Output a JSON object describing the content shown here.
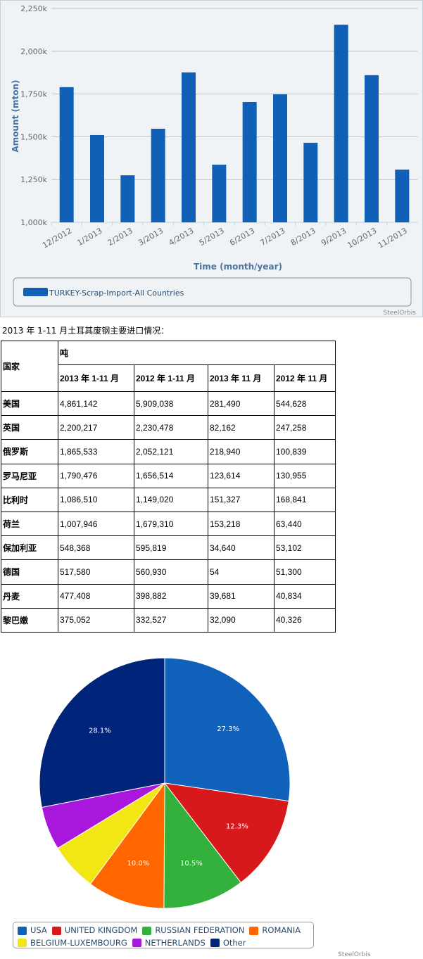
{
  "chart_data": [
    {
      "type": "bar",
      "xlabel": "Time (month/year)",
      "ylabel": "Amount (mton)",
      "ylim": [
        1000,
        2250
      ],
      "yticks": [
        "1,000k",
        "1,250k",
        "1,500k",
        "1,750k",
        "2,000k",
        "2,250k"
      ],
      "categories": [
        "12/2012",
        "1/2013",
        "2/2013",
        "3/2013",
        "4/2013",
        "5/2013",
        "6/2013",
        "7/2013",
        "8/2013",
        "9/2013",
        "10/2013",
        "11/2013"
      ],
      "series": [
        {
          "name": "TURKEY-Scrap-Import-All Countries",
          "values": [
            1790,
            1510,
            1275,
            1547,
            1876,
            1337,
            1703,
            1748,
            1465,
            2155,
            1860,
            1308
          ]
        }
      ],
      "color": "#1060b8",
      "grid": true,
      "legend": "bottom",
      "credit": "SteelOrbis"
    },
    {
      "type": "pie",
      "legend": "bottom",
      "credit": "SteelOrbis",
      "slices": [
        {
          "name": "USA",
          "value": 27.3,
          "label": "27.3%",
          "color": "#1061b9"
        },
        {
          "name": "UNITED KINGDOM",
          "value": 12.3,
          "label": "12.3%",
          "color": "#d7191c"
        },
        {
          "name": "RUSSIAN FEDERATION",
          "value": 10.5,
          "label": "10.5%",
          "color": "#34b03c"
        },
        {
          "name": "ROMANIA",
          "value": 10.0,
          "label": "10.0%",
          "color": "#ff6600"
        },
        {
          "name": "BELGIUM-LUXEMBOURG",
          "value": 6.2,
          "label": "",
          "color": "#f2e615"
        },
        {
          "name": "NETHERLANDS",
          "value": 5.6,
          "label": "",
          "color": "#aa17dc"
        },
        {
          "name": "Other",
          "value": 28.1,
          "label": "28.1%",
          "color": "#00247a"
        }
      ]
    }
  ],
  "caption": "2013 年 1-11 月土耳其废钢主要进口情况：",
  "table": {
    "col0": "国家",
    "unit": "吨",
    "headers": [
      "2013 年 1-11 月",
      "2012 年 1-11 月",
      "2013 年 11 月",
      "2012 年 11 月"
    ],
    "rows": [
      [
        "美国",
        "4,861,142",
        "5,909,038",
        "281,490",
        "544,628"
      ],
      [
        "英国",
        "2,200,217",
        "2,230,478",
        "82,162",
        "247,258"
      ],
      [
        "俄罗斯",
        "1,865,533",
        "2,052,121",
        "218,940",
        "100,839"
      ],
      [
        "罗马尼亚",
        "1,790,476",
        "1,656,514",
        "123,614",
        "130,955"
      ],
      [
        "比利时",
        "1,086,510",
        "1,149,020",
        "151,327",
        "168,841"
      ],
      [
        "荷兰",
        "1,007,946",
        "1,679,310",
        "153,218",
        "63,440"
      ],
      [
        "保加利亚",
        "548,368",
        "595,819",
        "34,640",
        "53,102"
      ],
      [
        "德国",
        "517,580",
        "560,930",
        "54",
        "51,300"
      ],
      [
        "丹麦",
        "477,408",
        "398,882",
        "39,681",
        "40,834"
      ],
      [
        "黎巴嫩",
        "375,052",
        "332,527",
        "32,090",
        "40,326"
      ]
    ]
  }
}
